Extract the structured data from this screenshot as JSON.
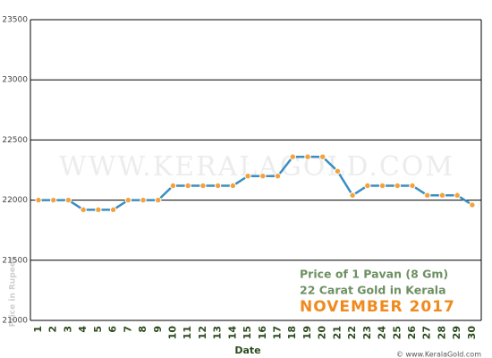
{
  "chart_data": {
    "type": "line",
    "title_lines": [
      "Price of 1 Pavan (8 Gm)",
      "22 Carat Gold in Kerala",
      "NOVEMBER 2017"
    ],
    "x_label": "Date",
    "y_label": "Price in Rupees",
    "watermark": "WWW.KERALAGOLD.COM",
    "credit": "© www.KeralaGold.com",
    "categories": [
      "1",
      "2",
      "3",
      "4",
      "5",
      "6",
      "7",
      "8",
      "9",
      "10",
      "11",
      "12",
      "13",
      "14",
      "15",
      "16",
      "17",
      "18",
      "19",
      "20",
      "21",
      "22",
      "23",
      "24",
      "25",
      "26",
      "27",
      "28",
      "29",
      "30"
    ],
    "series": [
      {
        "name": "Price",
        "color": "#3b8ec0",
        "marker_color": "#f3a23c",
        "values": [
          22000,
          22000,
          22000,
          21920,
          21920,
          21920,
          22000,
          22000,
          22000,
          22120,
          22120,
          22120,
          22120,
          22120,
          22200,
          22200,
          22200,
          22360,
          22360,
          22360,
          22240,
          22040,
          22120,
          22120,
          22120,
          22120,
          22040,
          22040,
          22040,
          21960
        ]
      }
    ],
    "ylim": [
      21000,
      23500
    ],
    "yticks": [
      21000,
      21500,
      22000,
      22500,
      23000,
      23500
    ],
    "grid": true
  }
}
